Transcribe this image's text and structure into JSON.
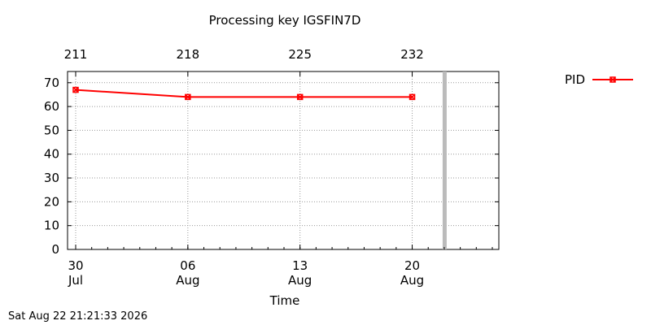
{
  "chart_data": {
    "type": "line",
    "title": "Processing key IGSFIN7D",
    "xlabel": "Time",
    "ylabel": "",
    "ylim": [
      0,
      73
    ],
    "xlim": [
      "2026-07-30",
      "2026-08-25"
    ],
    "grid": true,
    "legend_position": "top-right (outside plot)",
    "x_ticks": [
      {
        "date": "2026-07-30",
        "day": "30",
        "month": "Jul"
      },
      {
        "date": "2026-08-06",
        "day": "06",
        "month": "Aug"
      },
      {
        "date": "2026-08-13",
        "day": "13",
        "month": "Aug"
      },
      {
        "date": "2026-08-20",
        "day": "20",
        "month": "Aug"
      }
    ],
    "top_ticks": [
      {
        "date": "2026-07-30",
        "label": "211"
      },
      {
        "date": "2026-08-06",
        "label": "218"
      },
      {
        "date": "2026-08-13",
        "label": "225"
      },
      {
        "date": "2026-08-20",
        "label": "232"
      }
    ],
    "y_ticks": [
      0,
      10,
      20,
      30,
      40,
      50,
      60,
      70
    ],
    "now_marker": "2026-08-22",
    "series": [
      {
        "name": "PID",
        "color": "#ff0000",
        "marker": "x-square",
        "x": [
          "2026-07-30",
          "2026-08-06",
          "2026-08-13",
          "2026-08-20"
        ],
        "y": [
          67,
          64,
          64,
          64
        ]
      }
    ]
  },
  "footer": {
    "timestamp": "Sat Aug 22 21:21:33 2026"
  }
}
